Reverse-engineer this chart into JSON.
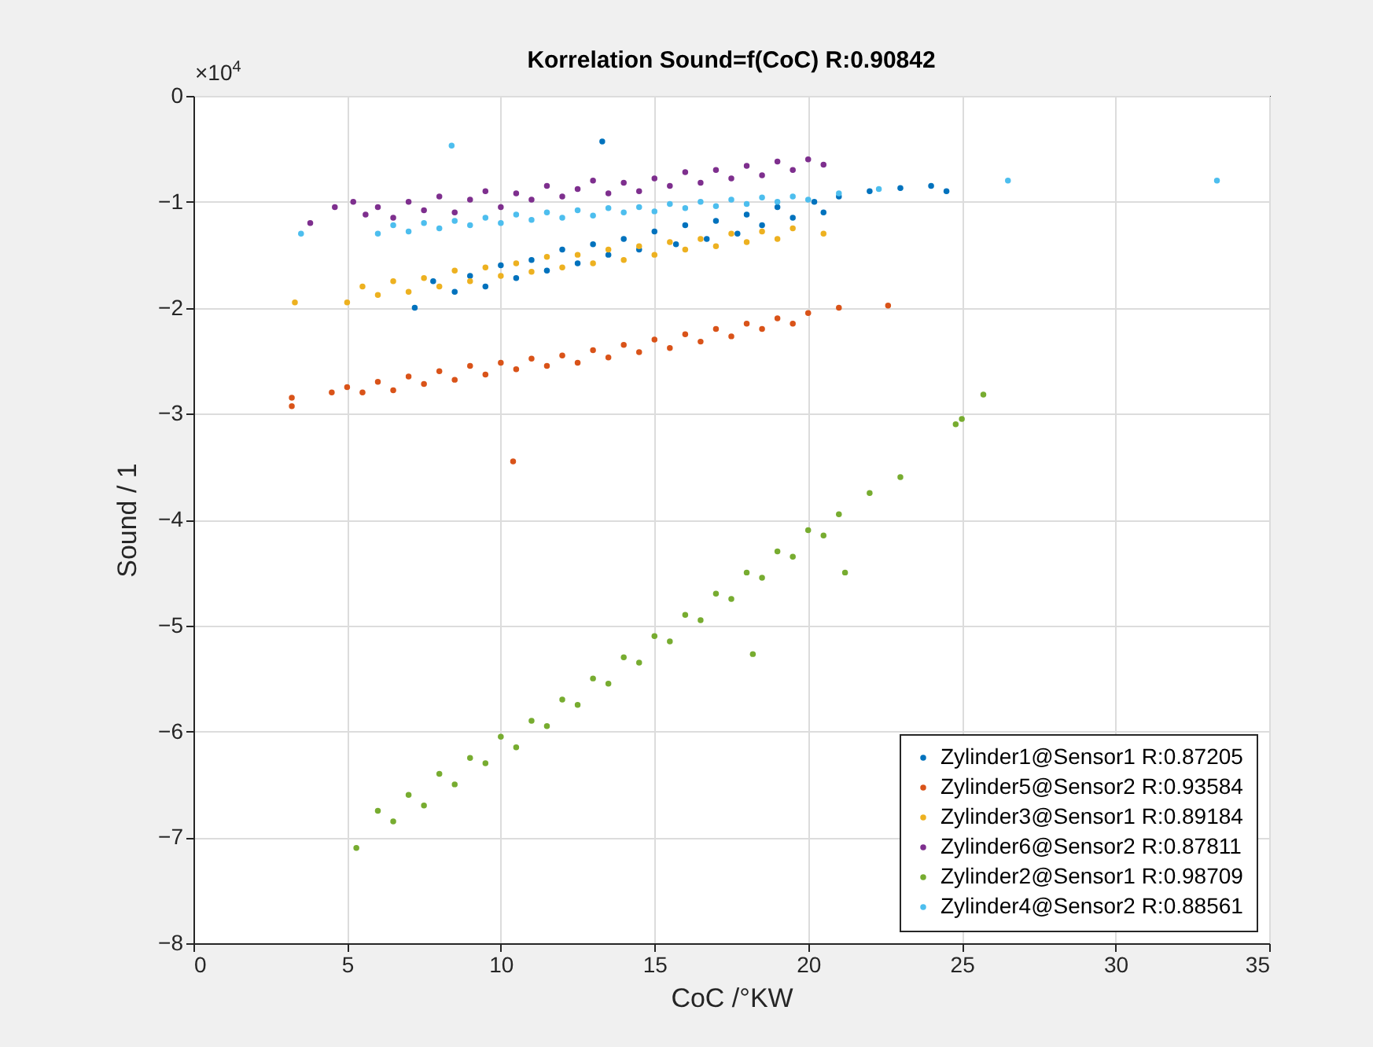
{
  "chart_data": {
    "type": "scatter",
    "title": "Korrelation Sound=f(CoC) R:0.90842",
    "xlabel": "CoC /°KW",
    "ylabel": "Sound / 1",
    "annotations": [
      "×10$^{4}$"
    ],
    "xlim": [
      0,
      35
    ],
    "xticks": [
      0,
      5,
      10,
      15,
      20,
      25,
      30,
      35
    ],
    "ylim": [
      -8,
      0
    ],
    "yticks": [
      -8,
      -7,
      -6,
      -5,
      -4,
      -3,
      -2,
      -1,
      0
    ],
    "grid": true,
    "legend": "bottom right",
    "marker": "circle",
    "series": [
      {
        "name": "Zylinder1@Sensor1 R:0.87205",
        "color": "#0072bd",
        "x": [
          7.2,
          7.8,
          8.5,
          9,
          9.5,
          10,
          10.5,
          11,
          11.5,
          12,
          12.5,
          13,
          13.3,
          13.5,
          14,
          14.5,
          15,
          15.7,
          16,
          16.7,
          17,
          17.7,
          18,
          18.5,
          19,
          19.5,
          20.2,
          20.5,
          21,
          22,
          23,
          24,
          24.5
        ],
        "values": [
          -2.0,
          -1.75,
          -1.85,
          -1.7,
          -1.8,
          -1.6,
          -1.72,
          -1.55,
          -1.65,
          -1.45,
          -1.58,
          -1.4,
          -0.43,
          -1.5,
          -1.35,
          -1.45,
          -1.28,
          -1.4,
          -1.22,
          -1.35,
          -1.18,
          -1.3,
          -1.12,
          -1.22,
          -1.05,
          -1.15,
          -1.0,
          -1.1,
          -0.95,
          -0.9,
          -0.87,
          -0.85,
          -0.9
        ]
      },
      {
        "name": "Zylinder5@Sensor2 R:0.93584",
        "color": "#d95319",
        "x": [
          3.2,
          3.2,
          4.5,
          5,
          5.5,
          6,
          6.5,
          7,
          7.5,
          8,
          8.5,
          9,
          9.5,
          10,
          10.4,
          10.5,
          11,
          11.5,
          12,
          12.5,
          13,
          13.5,
          14,
          14.5,
          15,
          15.5,
          16,
          16.5,
          17,
          17.5,
          18,
          18.5,
          19,
          19.5,
          20,
          21,
          22.6
        ],
        "values": [
          -2.85,
          -2.93,
          -2.8,
          -2.75,
          -2.8,
          -2.7,
          -2.78,
          -2.65,
          -2.72,
          -2.6,
          -2.68,
          -2.55,
          -2.63,
          -2.52,
          -3.45,
          -2.58,
          -2.48,
          -2.55,
          -2.45,
          -2.52,
          -2.4,
          -2.47,
          -2.35,
          -2.42,
          -2.3,
          -2.38,
          -2.25,
          -2.32,
          -2.2,
          -2.27,
          -2.15,
          -2.2,
          -2.1,
          -2.15,
          -2.05,
          -2.0,
          -1.98
        ]
      },
      {
        "name": "Zylinder3@Sensor1 R:0.89184",
        "color": "#edb120",
        "x": [
          3.3,
          5,
          5.5,
          6,
          6.5,
          7,
          7.5,
          8,
          8.5,
          9,
          9.5,
          10,
          10.5,
          11,
          11.5,
          12,
          12.5,
          13,
          13.5,
          14,
          14.5,
          15,
          15.5,
          16,
          16.5,
          17,
          17.5,
          18,
          18.5,
          19,
          19.5,
          20.5
        ],
        "values": [
          -1.95,
          -1.95,
          -1.8,
          -1.88,
          -1.75,
          -1.85,
          -1.72,
          -1.8,
          -1.65,
          -1.75,
          -1.62,
          -1.7,
          -1.58,
          -1.66,
          -1.52,
          -1.62,
          -1.5,
          -1.58,
          -1.45,
          -1.55,
          -1.42,
          -1.5,
          -1.38,
          -1.45,
          -1.35,
          -1.42,
          -1.3,
          -1.38,
          -1.28,
          -1.35,
          -1.25,
          -1.3
        ]
      },
      {
        "name": "Zylinder6@Sensor2 R:0.87811",
        "color": "#7e2f8e",
        "x": [
          3.8,
          4.6,
          5.2,
          5.6,
          6,
          6.5,
          7,
          7.5,
          8,
          8.5,
          9,
          9.5,
          10,
          10.5,
          11,
          11.5,
          12,
          12.5,
          13,
          13.5,
          14,
          14.5,
          15,
          15.5,
          16,
          16.5,
          17,
          17.5,
          18,
          18.5,
          19,
          19.5,
          20,
          20.5
        ],
        "values": [
          -1.2,
          -1.05,
          -1.0,
          -1.12,
          -1.05,
          -1.15,
          -1.0,
          -1.08,
          -0.95,
          -1.1,
          -0.98,
          -0.9,
          -1.05,
          -0.92,
          -0.98,
          -0.85,
          -0.95,
          -0.88,
          -0.8,
          -0.92,
          -0.82,
          -0.9,
          -0.78,
          -0.85,
          -0.72,
          -0.82,
          -0.7,
          -0.78,
          -0.66,
          -0.75,
          -0.62,
          -0.7,
          -0.6,
          -0.65
        ]
      },
      {
        "name": "Zylinder2@Sensor1 R:0.98709",
        "color": "#77ac30",
        "x": [
          5.3,
          6,
          6.5,
          7,
          7.5,
          8,
          8.5,
          9,
          9.5,
          10,
          10.5,
          11,
          11.5,
          12,
          12.5,
          13,
          13.5,
          14,
          14.5,
          15,
          15.5,
          16,
          16.5,
          17,
          17.5,
          18,
          18.2,
          18.5,
          19,
          19.5,
          20,
          20.5,
          21,
          21.2,
          22,
          23,
          24.8,
          25,
          25.7
        ],
        "values": [
          -7.1,
          -6.75,
          -6.85,
          -6.6,
          -6.7,
          -6.4,
          -6.5,
          -6.25,
          -6.3,
          -6.05,
          -6.15,
          -5.9,
          -5.95,
          -5.7,
          -5.75,
          -5.5,
          -5.55,
          -5.3,
          -5.35,
          -5.1,
          -5.15,
          -4.9,
          -4.95,
          -4.7,
          -4.75,
          -4.5,
          -5.27,
          -4.55,
          -4.3,
          -4.35,
          -4.1,
          -4.15,
          -3.95,
          -4.5,
          -3.75,
          -3.6,
          -3.1,
          -3.05,
          -2.82
        ]
      },
      {
        "name": "Zylinder4@Sensor2 R:0.88561",
        "color": "#4dbeee",
        "x": [
          3.5,
          8.4,
          6,
          6.5,
          7,
          7.5,
          8,
          8.5,
          9,
          9.5,
          10,
          10.5,
          11,
          11.5,
          12,
          12.5,
          13,
          13.5,
          14,
          14.5,
          15,
          15.5,
          16,
          16.5,
          17,
          17.5,
          18,
          18.5,
          19,
          19.5,
          20,
          21,
          22.3,
          26.5,
          33.3
        ],
        "values": [
          -1.3,
          -0.47,
          -1.3,
          -1.22,
          -1.28,
          -1.2,
          -1.25,
          -1.18,
          -1.22,
          -1.15,
          -1.2,
          -1.12,
          -1.17,
          -1.1,
          -1.15,
          -1.08,
          -1.13,
          -1.06,
          -1.1,
          -1.05,
          -1.09,
          -1.02,
          -1.06,
          -1.0,
          -1.04,
          -0.98,
          -1.02,
          -0.96,
          -1.0,
          -0.95,
          -0.98,
          -0.92,
          -0.88,
          -0.8,
          -0.8
        ]
      }
    ]
  }
}
